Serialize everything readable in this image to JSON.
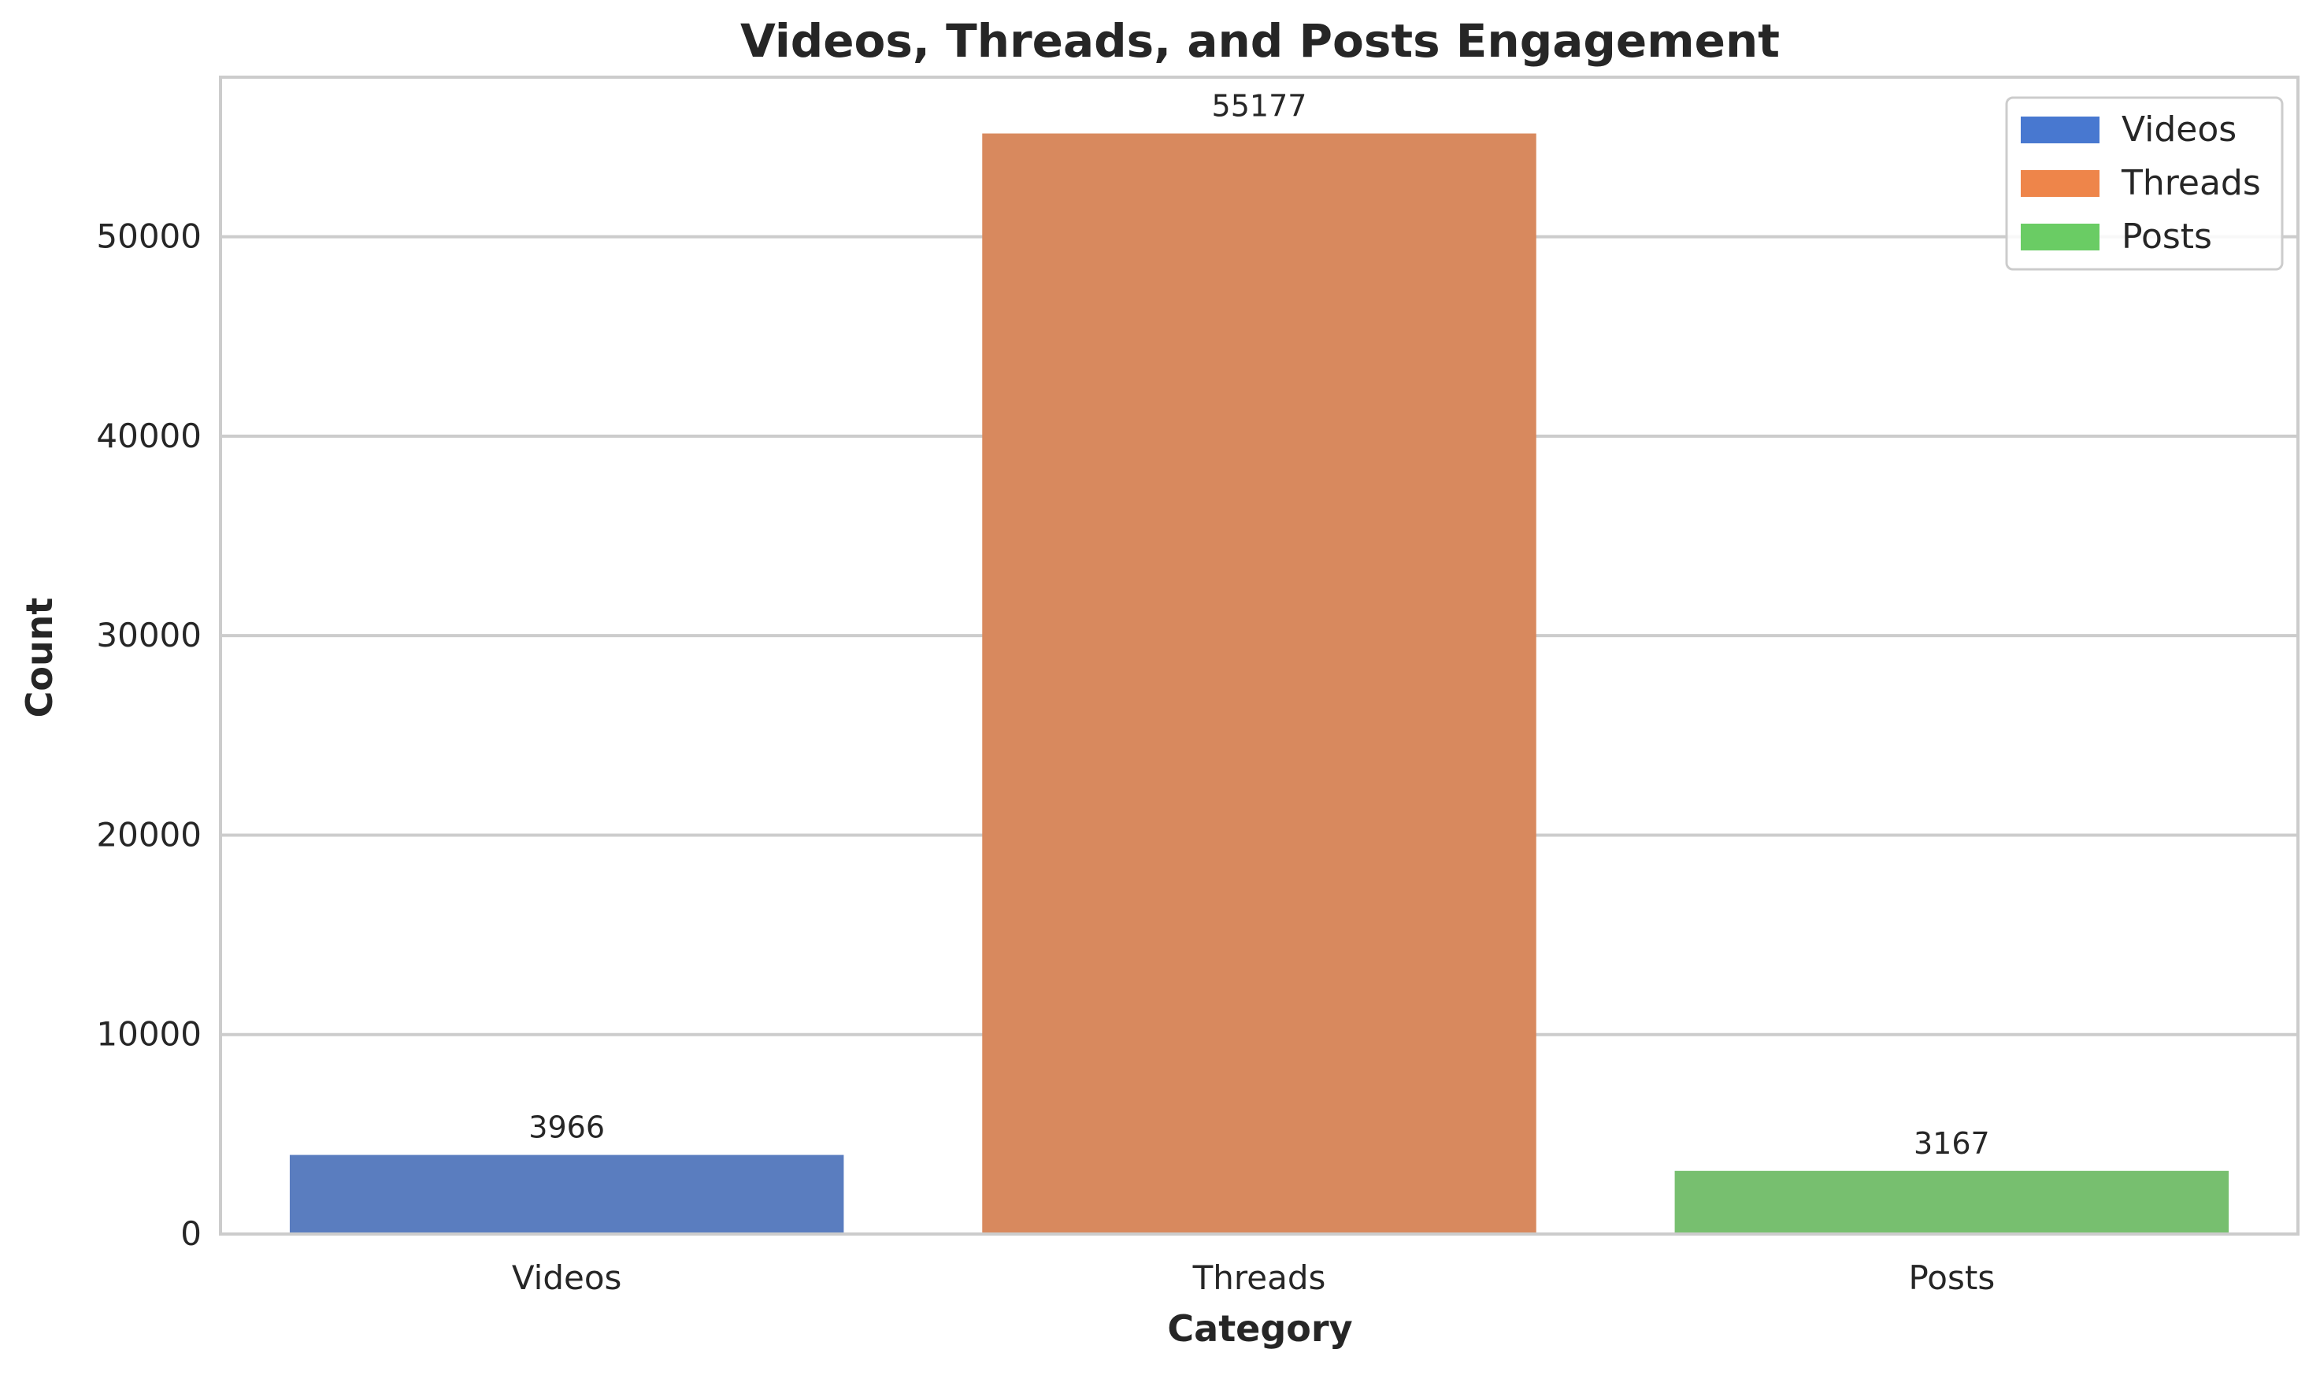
{
  "chart_data": {
    "type": "bar",
    "title": "Videos, Threads, and Posts Engagement",
    "xlabel": "Category",
    "ylabel": "Count",
    "categories": [
      "Videos",
      "Threads",
      "Posts"
    ],
    "values": [
      3966,
      55177,
      3167
    ],
    "data_labels": [
      "3966",
      "55177",
      "3167"
    ],
    "bar_colors": [
      "#5a7dbf",
      "#d8895e",
      "#77bf6f"
    ],
    "ylim": [
      0,
      58000
    ],
    "yticks": [
      0,
      10000,
      20000,
      30000,
      40000,
      50000
    ],
    "ytick_labels": [
      "0",
      "10000",
      "20000",
      "30000",
      "40000",
      "50000"
    ],
    "grid": "horizontal",
    "legend": {
      "placement": "top-right",
      "entries": [
        {
          "label": "Videos",
          "color": "#4878d0"
        },
        {
          "label": "Threads",
          "color": "#ee854a"
        },
        {
          "label": "Posts",
          "color": "#6acc64"
        }
      ]
    }
  }
}
